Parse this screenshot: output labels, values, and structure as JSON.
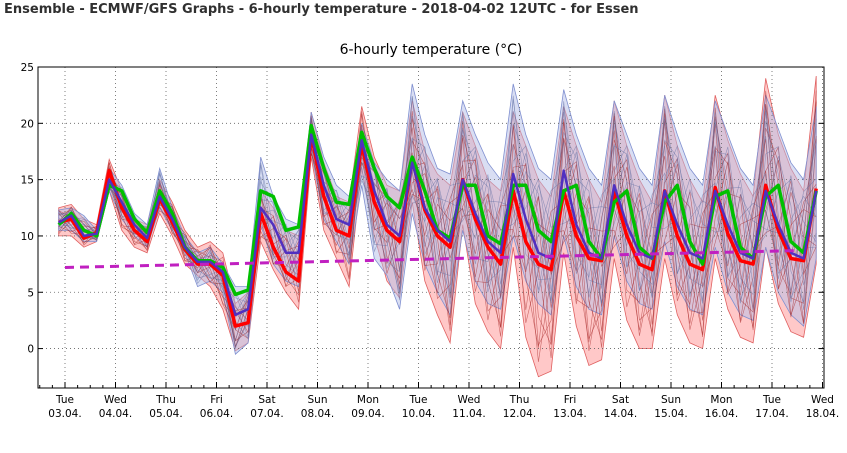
{
  "page": {
    "title": "Ensemble - ECMWF/GFS Graphs - 6-hourly temperature - 2018-04-02 12UTC - for Essen"
  },
  "chart_data": {
    "type": "line",
    "title": "6-hourly temperature (°C)",
    "xlabel": "",
    "ylabel": "",
    "ylim": [
      -3.5,
      25
    ],
    "yticks": [
      0,
      5,
      10,
      15,
      20,
      25
    ],
    "grid": true,
    "legend": "none",
    "x_unit": "6-hour steps from Tue 03.04. 00 UTC",
    "x_range": [
      -0.5,
      62.5
    ],
    "day_ticks": [
      {
        "day": "Tue",
        "date": "03.04."
      },
      {
        "day": "Wed",
        "date": "04.04."
      },
      {
        "day": "Thu",
        "date": "05.04."
      },
      {
        "day": "Fri",
        "date": "06.04."
      },
      {
        "day": "Sat",
        "date": "07.04."
      },
      {
        "day": "Sun",
        "date": "08.04."
      },
      {
        "day": "Mon",
        "date": "09.04."
      },
      {
        "day": "Tue",
        "date": "10.04."
      },
      {
        "day": "Wed",
        "date": "11.04."
      },
      {
        "day": "Thu",
        "date": "12.04."
      },
      {
        "day": "Fri",
        "date": "13.04."
      },
      {
        "day": "Sat",
        "date": "14.04."
      },
      {
        "day": "Sun",
        "date": "15.04."
      },
      {
        "day": "Mon",
        "date": "16.04."
      },
      {
        "day": "Tue",
        "date": "17.04."
      },
      {
        "day": "Wed",
        "date": "18.04."
      }
    ],
    "series": [
      {
        "role": "ecmwf-main",
        "color": "#ff0000",
        "x_start": -0.5,
        "values": [
          11.2,
          11.5,
          9.8,
          10.3,
          15.8,
          12.5,
          10.5,
          9.5,
          13.3,
          11.2,
          8.8,
          7.5,
          7.5,
          6.5,
          2.0,
          2.3,
          12.0,
          9.0,
          6.8,
          6.0,
          19.0,
          13.5,
          10.5,
          10.0,
          18.2,
          13.0,
          10.5,
          9.5,
          16.8,
          12.3,
          10.0,
          9.0,
          15.0,
          11.5,
          9.0,
          7.5,
          14.0,
          9.5,
          7.5,
          7.0,
          14.0,
          10.0,
          8.0,
          7.8,
          14.0,
          10.0,
          7.5,
          7.0,
          14.0,
          10.0,
          7.5,
          7.0,
          14.3,
          10.2,
          7.8,
          7.5,
          14.5,
          10.5,
          8.0,
          7.8,
          14.2
        ]
      },
      {
        "role": "gfs-main",
        "color": "#00c000",
        "x_start": -0.5,
        "values": [
          11.0,
          12.0,
          10.5,
          10.0,
          14.5,
          14.0,
          11.5,
          10.3,
          14.0,
          12.0,
          9.0,
          7.8,
          7.8,
          7.2,
          4.8,
          5.2,
          14.0,
          13.5,
          10.5,
          10.8,
          19.8,
          16.0,
          13.0,
          12.8,
          19.2,
          16.0,
          13.5,
          12.5,
          17.0,
          14.0,
          10.5,
          9.8,
          14.5,
          14.5,
          10.0,
          9.3,
          14.5,
          14.5,
          10.5,
          9.5,
          14.0,
          14.5,
          9.5,
          8.0,
          13.0,
          14.0,
          9.0,
          8.0,
          13.0,
          14.5,
          9.5,
          7.5,
          13.5,
          14.0,
          9.0,
          8.0,
          13.5,
          14.5,
          9.5,
          8.5,
          14.0
        ]
      },
      {
        "role": "ensemble-mean",
        "color": "#5030c0",
        "x_start": -0.5,
        "values": [
          11.2,
          11.8,
          10.0,
          10.2,
          15.0,
          13.0,
          11.0,
          9.8,
          13.5,
          11.5,
          9.0,
          7.7,
          7.7,
          6.8,
          3.0,
          3.5,
          12.5,
          11.0,
          8.5,
          8.5,
          19.0,
          14.5,
          11.5,
          11.0,
          18.5,
          14.0,
          11.0,
          10.0,
          16.5,
          12.5,
          10.5,
          9.5,
          15.0,
          12.0,
          9.5,
          8.5,
          15.5,
          11.5,
          8.5,
          8.0,
          15.8,
          11.0,
          8.5,
          8.0,
          14.5,
          11.0,
          8.5,
          8.0,
          14.0,
          11.0,
          8.5,
          8.0,
          14.0,
          11.0,
          8.5,
          8.0,
          14.0,
          11.0,
          8.5,
          8.0,
          14.0
        ]
      },
      {
        "role": "climate-mean",
        "color": "#c020c0",
        "x": [
          0,
          58
        ],
        "values": [
          7.2,
          8.7
        ]
      }
    ],
    "ensemble_bands": [
      {
        "color": "#ff9a9a",
        "x_start": -0.5,
        "low": [
          10.0,
          10.0,
          9.0,
          9.5,
          14.0,
          10.5,
          9.0,
          8.5,
          12.0,
          10.0,
          7.5,
          6.5,
          5.5,
          3.5,
          -0.2,
          0.5,
          9.5,
          7.0,
          5.0,
          3.5,
          17.0,
          10.5,
          8.0,
          5.5,
          16.0,
          10.0,
          6.0,
          4.5,
          13.0,
          6.0,
          3.0,
          0.5,
          11.0,
          4.0,
          1.5,
          0.0,
          9.0,
          1.0,
          -2.5,
          -2.0,
          8.5,
          2.0,
          -1.5,
          -1.0,
          8.0,
          2.5,
          0.0,
          0.0,
          8.0,
          3.0,
          0.5,
          0.0,
          8.0,
          3.5,
          1.0,
          0.5,
          9.0,
          4.0,
          1.5,
          1.0,
          7.5
        ],
        "high": [
          12.5,
          12.8,
          11.5,
          11.0,
          16.8,
          14.0,
          11.5,
          11.0,
          15.0,
          13.0,
          10.5,
          9.0,
          9.5,
          8.5,
          4.0,
          5.0,
          14.0,
          12.5,
          10.5,
          10.0,
          21.0,
          16.5,
          13.5,
          13.0,
          21.5,
          17.0,
          14.5,
          14.0,
          22.0,
          17.5,
          15.5,
          14.5,
          21.0,
          18.0,
          15.0,
          14.0,
          21.0,
          18.0,
          15.0,
          13.5,
          21.5,
          18.0,
          15.0,
          13.0,
          22.0,
          18.0,
          15.0,
          13.0,
          22.5,
          18.0,
          15.0,
          13.0,
          22.5,
          18.5,
          15.5,
          13.5,
          24.0,
          19.0,
          16.0,
          14.0,
          24.2
        ]
      },
      {
        "color": "#b4bee8",
        "x_start": -0.5,
        "low": [
          10.5,
          10.5,
          9.5,
          9.5,
          14.0,
          11.5,
          10.0,
          9.0,
          12.5,
          10.5,
          8.5,
          5.5,
          6.0,
          5.0,
          -0.5,
          0.5,
          11.0,
          7.5,
          6.0,
          5.5,
          17.5,
          11.5,
          9.5,
          7.5,
          14.5,
          8.0,
          6.5,
          3.5,
          12.0,
          7.5,
          5.0,
          3.0,
          10.5,
          6.0,
          4.0,
          3.5,
          10.0,
          6.0,
          4.0,
          3.0,
          10.0,
          5.5,
          3.5,
          3.0,
          10.0,
          6.0,
          4.0,
          3.5,
          9.5,
          5.5,
          3.5,
          3.0,
          9.0,
          5.0,
          3.0,
          2.5,
          9.0,
          5.0,
          3.0,
          2.0,
          8.0
        ],
        "high": [
          12.3,
          12.5,
          11.8,
          10.5,
          16.0,
          14.5,
          12.0,
          11.0,
          16.0,
          12.5,
          10.0,
          8.5,
          9.0,
          7.5,
          5.5,
          5.5,
          17.0,
          13.5,
          11.5,
          11.0,
          21.0,
          17.0,
          14.5,
          13.5,
          20.0,
          16.5,
          15.0,
          14.0,
          23.5,
          19.0,
          16.0,
          15.5,
          22.0,
          19.0,
          16.5,
          15.0,
          23.5,
          19.0,
          16.0,
          15.0,
          23.0,
          19.0,
          16.0,
          14.5,
          22.0,
          19.0,
          16.0,
          14.5,
          22.5,
          19.0,
          16.0,
          14.5,
          22.0,
          19.0,
          16.0,
          14.5,
          22.5,
          19.5,
          16.5,
          15.0,
          21.5
        ]
      }
    ]
  }
}
